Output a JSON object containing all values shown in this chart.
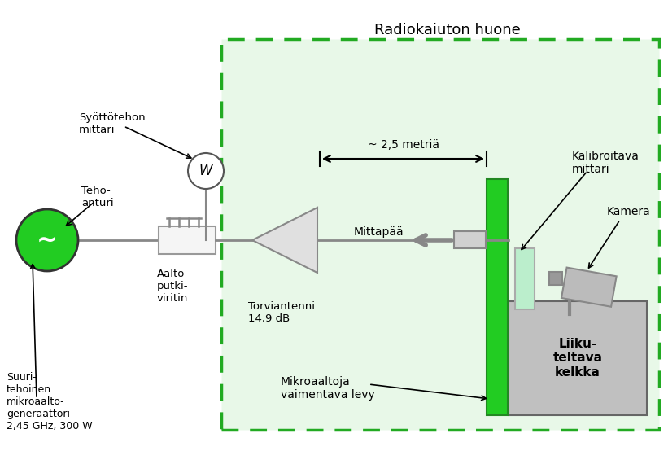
{
  "title": "Radiokaiuton huone",
  "bg_color": "#ffffff",
  "room_fill": "#e8f8e8",
  "room_border": "#22aa22",
  "green_fill": "#22cc22",
  "gray_fill": "#c0c0c0",
  "line_color": "#888888",
  "text_color": "#000000",
  "labels": {
    "title": "Radiokaiuton huone",
    "syottotehon": "Syöttötehon\nmittari",
    "teho_anturi": "Teho-\nanturi",
    "aaltoputki": "Aalto-\nputki-\nviritin",
    "torviantenni": "Torviantenni\n14,9 dB",
    "distance": "~ 2,5 metriä",
    "mittapaa": "Mittapää",
    "kalibroitava": "Kalibroitava\nmittari",
    "kamera": "Kamera",
    "liikuteltava": "Liiku-\nteltava\nkelkka",
    "mikroaaltoja": "Mikroaaltoja\nvaimentava levy",
    "suuritehoinen": "Suuri-\ntehoinen\nmikroaalto-\ngeneraattori\n2,45 GHz, 300 W"
  }
}
